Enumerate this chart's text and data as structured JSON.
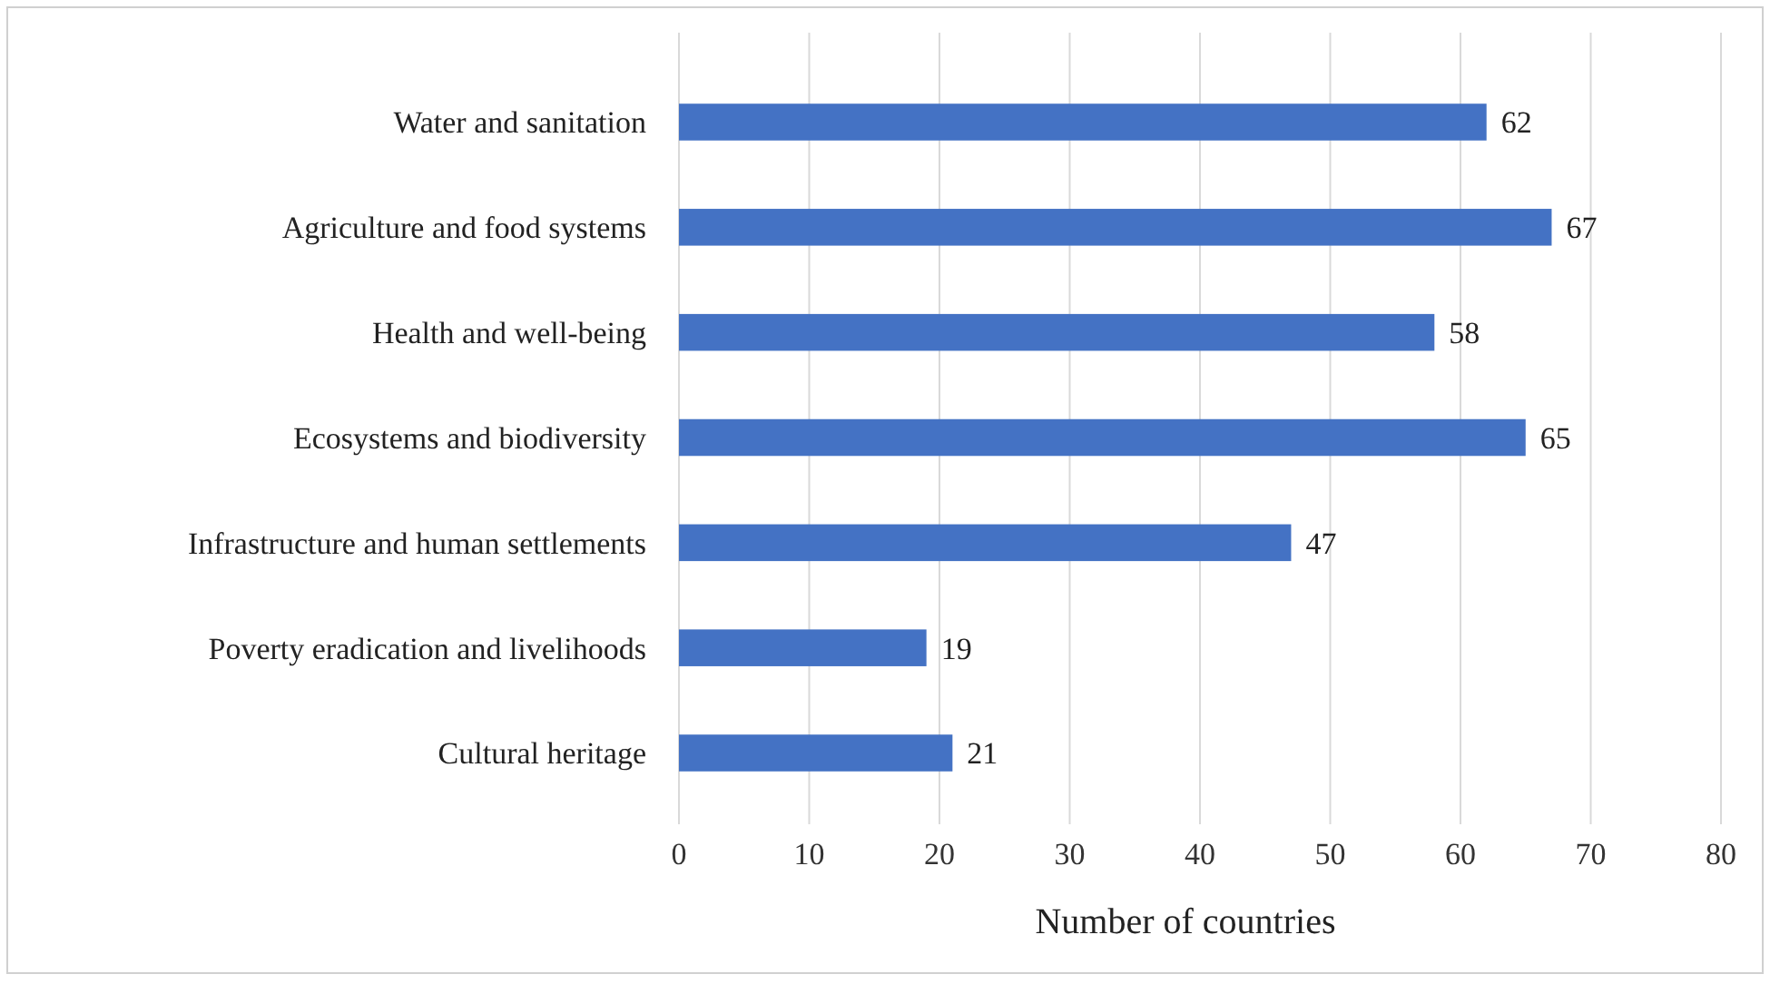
{
  "chart_data": {
    "type": "bar",
    "orientation": "horizontal",
    "xlabel": "Number of countries",
    "categories": [
      "Water and sanitation",
      "Agriculture and food systems",
      "Health and well-being",
      "Ecosystems and biodiversity",
      "Infrastructure and human settlements",
      "Poverty eradication and livelihoods",
      "Cultural heritage"
    ],
    "values": [
      62,
      67,
      58,
      65,
      47,
      19,
      21
    ],
    "color": "#4472c4",
    "xlim": [
      0,
      80
    ],
    "xticks": [
      0,
      10,
      20,
      30,
      40,
      50,
      60,
      70,
      80
    ],
    "grid": "x",
    "data_labels": true
  }
}
